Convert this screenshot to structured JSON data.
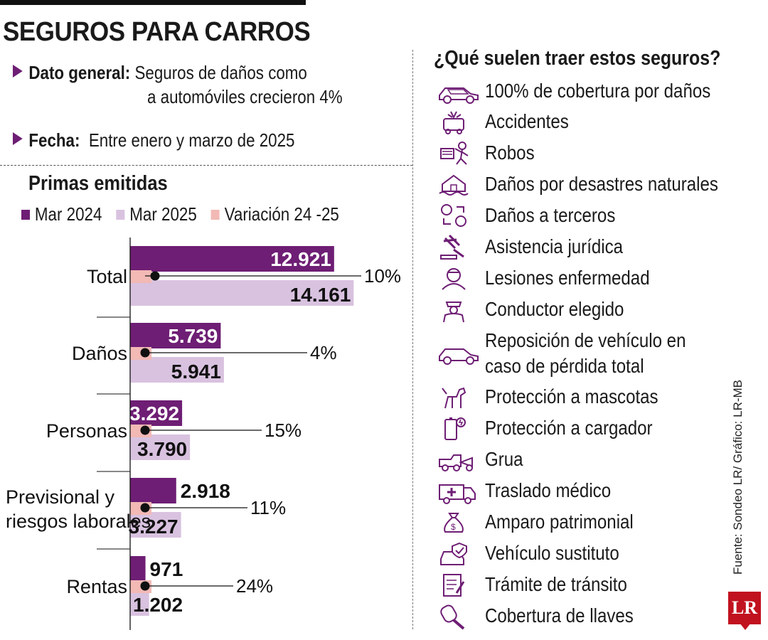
{
  "title": "SEGUROS PARA CARROS",
  "info": {
    "general_label": "Dato general:",
    "general_text_1": "Seguros de daños como",
    "general_text_2": "a automóviles crecieron 4%",
    "date_label": "Fecha:",
    "date_text": "Entre enero y marzo de 2025"
  },
  "chart_data": {
    "type": "bar",
    "title": "Primas emitidas",
    "legend": [
      "Mar 2024",
      "Mar 2025",
      "Variación 24 -25"
    ],
    "colors": {
      "mar2024": "#6e1e74",
      "mar2025": "#d9c2e0",
      "variacion": "#f2b9b5"
    },
    "categories": [
      "Total",
      "Daños",
      "Personas",
      "Previsional y riesgos laborales",
      "Rentas"
    ],
    "category_lines": [
      [
        "Total"
      ],
      [
        "Daños"
      ],
      [
        "Personas"
      ],
      [
        "Previsional y",
        "riesgos laborales"
      ],
      [
        "Rentas"
      ]
    ],
    "series": [
      {
        "name": "Mar 2024",
        "values": [
          12921,
          5739,
          3292,
          2918,
          971
        ],
        "labels": [
          "12.921",
          "5.739",
          "3.292",
          "2.918",
          "971"
        ]
      },
      {
        "name": "Mar 2025",
        "values": [
          14161,
          5941,
          3790,
          3227,
          1202
        ],
        "labels": [
          "14.161",
          "5.941",
          "3.790",
          "3.227",
          "1.202"
        ]
      },
      {
        "name": "Variación 24 -25",
        "values": [
          10,
          4,
          15,
          11,
          24
        ],
        "labels": [
          "10%",
          "4%",
          "15%",
          "11%",
          "24%"
        ]
      }
    ]
  },
  "features": {
    "title": "¿Qué suelen traer estos seguros?",
    "items": [
      {
        "icon": "car-icon",
        "label": "100% de cobertura por daños"
      },
      {
        "icon": "car-crash-icon",
        "label": "Accidentes"
      },
      {
        "icon": "thief-icon",
        "label": "Robos"
      },
      {
        "icon": "flood-house-icon",
        "label": "Daños por desastres naturales"
      },
      {
        "icon": "third-party-exchange-icon",
        "label": "Daños a terceros"
      },
      {
        "icon": "gavel-icon",
        "label": "Asistencia jurídica"
      },
      {
        "icon": "injured-person-icon",
        "label": "Lesiones enfermedad"
      },
      {
        "icon": "driver-icon",
        "label": "Conductor elegido"
      },
      {
        "icon": "car-replacement-icon",
        "label": "Reposición de vehículo en caso de pérdida total"
      },
      {
        "icon": "pet-icon",
        "label": "Protección a mascotas"
      },
      {
        "icon": "charger-icon",
        "label": "Protección a cargador"
      },
      {
        "icon": "tow-truck-icon",
        "label": "Grua"
      },
      {
        "icon": "ambulance-icon",
        "label": "Traslado médico"
      },
      {
        "icon": "money-bag-icon",
        "label": "Amparo patrimonial"
      },
      {
        "icon": "substitute-car-icon",
        "label": "Vehículo sustituto"
      },
      {
        "icon": "document-icon",
        "label": "Trámite de tránsito"
      },
      {
        "icon": "car-key-icon",
        "label": "Cobertura de llaves"
      }
    ]
  },
  "source": "Fuente: Sondeo LR/ Gráfico: LR-MB",
  "logo_text": "LR"
}
